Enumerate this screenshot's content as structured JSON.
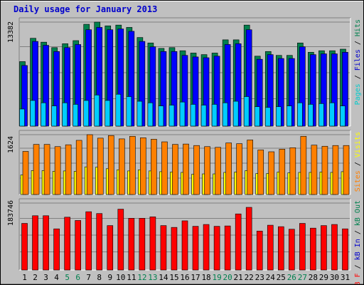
{
  "title": "Daily usage for January 2013",
  "chart_data": [
    {
      "type": "bar",
      "title": "Daily usage for January 2013",
      "categories": [
        "1",
        "2",
        "3",
        "4",
        "5",
        "6",
        "7",
        "8",
        "9",
        "10",
        "11",
        "12",
        "13",
        "14",
        "15",
        "16",
        "17",
        "18",
        "19",
        "20",
        "21",
        "22",
        "23",
        "24",
        "25",
        "26",
        "27",
        "28",
        "29",
        "30",
        "31"
      ],
      "weekend_categories": [
        "5",
        "6",
        "12",
        "13",
        "19",
        "20",
        "26",
        "27"
      ],
      "ylim": [
        0,
        13382
      ],
      "ytick_label": "13382",
      "legend": [
        {
          "text": "Pages",
          "color": "#00cccc"
        },
        {
          "text": "Files",
          "color": "#0000cc"
        },
        {
          "text": "Hits",
          "color": "#00804e"
        }
      ],
      "series": [
        {
          "name": "Hits",
          "color": "#00804e",
          "values": [
            8300,
            11300,
            10800,
            10100,
            10600,
            11000,
            13100,
            13382,
            12900,
            13000,
            12700,
            11400,
            10700,
            10000,
            10100,
            9700,
            9400,
            9200,
            9400,
            11100,
            11100,
            13000,
            9000,
            9600,
            9100,
            9100,
            10700,
            9500,
            9700,
            9700,
            9900
          ]
        },
        {
          "name": "Files",
          "color": "#0000ff",
          "values": [
            7800,
            10900,
            10400,
            9600,
            10100,
            10500,
            12400,
            12700,
            12400,
            12500,
            12200,
            10900,
            10200,
            9600,
            9600,
            9100,
            8900,
            8800,
            9000,
            10500,
            10600,
            12400,
            8600,
            9200,
            8700,
            8700,
            10200,
            9200,
            9300,
            9300,
            9500
          ]
        },
        {
          "name": "Pages",
          "color": "#00ccff",
          "values": [
            2200,
            3300,
            3000,
            2600,
            3000,
            2800,
            3300,
            4000,
            3300,
            4100,
            3800,
            3200,
            3000,
            2600,
            2700,
            3100,
            2800,
            2700,
            2800,
            3000,
            3200,
            3800,
            2500,
            2400,
            2500,
            2600,
            3000,
            2800,
            2900,
            3000,
            2600
          ]
        }
      ]
    },
    {
      "type": "bar",
      "categories": [
        "1",
        "2",
        "3",
        "4",
        "5",
        "6",
        "7",
        "8",
        "9",
        "10",
        "11",
        "12",
        "13",
        "14",
        "15",
        "16",
        "17",
        "18",
        "19",
        "20",
        "21",
        "22",
        "23",
        "24",
        "25",
        "26",
        "27",
        "28",
        "29",
        "30",
        "31"
      ],
      "ylim": [
        0,
        1624
      ],
      "ytick_label": "1624",
      "legend": [
        {
          "text": "Sites",
          "color": "#ff8000"
        },
        {
          "text": "Visits",
          "color": "#ffff00"
        }
      ],
      "series": [
        {
          "name": "Visits",
          "color": "#ffff00",
          "values": [
            530,
            650,
            650,
            630,
            640,
            630,
            750,
            740,
            700,
            670,
            640,
            670,
            640,
            620,
            610,
            600,
            550,
            560,
            560,
            600,
            610,
            650,
            570,
            570,
            610,
            590,
            600,
            600,
            610,
            600,
            620
          ]
        },
        {
          "name": "Sites",
          "color": "#ff8000",
          "values": [
            1170,
            1360,
            1360,
            1300,
            1350,
            1470,
            1624,
            1530,
            1600,
            1510,
            1580,
            1540,
            1500,
            1430,
            1360,
            1370,
            1330,
            1300,
            1280,
            1400,
            1380,
            1480,
            1210,
            1160,
            1230,
            1270,
            1580,
            1340,
            1310,
            1330,
            1330
          ]
        }
      ]
    },
    {
      "type": "bar",
      "categories": [
        "1",
        "2",
        "3",
        "4",
        "5",
        "6",
        "7",
        "8",
        "9",
        "10",
        "11",
        "12",
        "13",
        "14",
        "15",
        "16",
        "17",
        "18",
        "19",
        "20",
        "21",
        "22",
        "23",
        "24",
        "25",
        "26",
        "27",
        "28",
        "29",
        "30",
        "31"
      ],
      "ylim": [
        0,
        183746
      ],
      "ytick_label": "183746",
      "legend": [
        {
          "text": "kB F",
          "color": "#ff0000"
        },
        {
          "text": "kB In",
          "color": "#0000cc"
        },
        {
          "text": "kB Out",
          "color": "#00804e"
        }
      ],
      "series": [
        {
          "name": "kB F",
          "color": "#ff0000",
          "values": [
            128000,
            149000,
            149000,
            113000,
            145000,
            136000,
            160000,
            155000,
            122000,
            167000,
            142000,
            142000,
            146000,
            122000,
            117000,
            135000,
            120000,
            125000,
            120000,
            121000,
            154000,
            172000,
            107000,
            123000,
            119000,
            112000,
            128000,
            115000,
            122000,
            125000,
            113000
          ]
        }
      ]
    }
  ]
}
